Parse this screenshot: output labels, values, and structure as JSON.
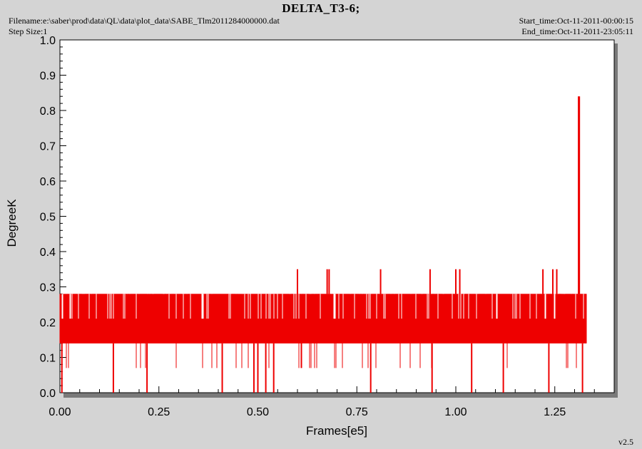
{
  "header": {
    "title": "DELTA_T3-6;",
    "filename": "Filename:e:\\saber\\prod\\data\\QL\\data\\plot_data\\SABE_Tlm2011284000000.dat",
    "step_size": "Step Size:1",
    "start_time": "Start_time:Oct-11-2011-00:00:15",
    "end_time": "End_time:Oct-11-2011-23:05:11"
  },
  "version": "v2.5",
  "colors": {
    "series": "#ee0000",
    "plot_bg": "#ffffff",
    "page_bg": "#d4d4d4",
    "shadow": "#7a7a7a"
  },
  "chart_data": {
    "type": "line",
    "title": "DELTA_T3-6;",
    "xlabel": "Frames[e5]",
    "ylabel": "DegreeK",
    "xlim": [
      0,
      1.4
    ],
    "ylim": [
      0,
      1.0
    ],
    "x_ticks": [
      "0.00",
      "0.25",
      "0.50",
      "0.75",
      "1.00",
      "1.25"
    ],
    "y_ticks": [
      "0.0",
      "0.1",
      "0.2",
      "0.3",
      "0.4",
      "0.5",
      "0.6",
      "0.7",
      "0.8",
      "0.9",
      "1.0"
    ],
    "x_tick_values": [
      0,
      0.25,
      0.5,
      0.75,
      1.0,
      1.25
    ],
    "y_tick_values": [
      0,
      0.1,
      0.2,
      0.3,
      0.4,
      0.5,
      0.6,
      0.7,
      0.8,
      0.9,
      1.0
    ],
    "grid": false,
    "series": [
      {
        "x_range": [
          0,
          1.33
        ],
        "band_min": 0.14,
        "band_max": 0.28,
        "typical_levels": [
          0.07,
          0.14,
          0.21,
          0.28
        ],
        "spikes": [
          {
            "x": 0.6,
            "y": 0.35
          },
          {
            "x": 0.675,
            "y": 0.35
          },
          {
            "x": 0.68,
            "y": 0.35
          },
          {
            "x": 0.81,
            "y": 0.35
          },
          {
            "x": 0.935,
            "y": 0.35
          },
          {
            "x": 1.0,
            "y": 0.35
          },
          {
            "x": 1.01,
            "y": 0.35
          },
          {
            "x": 1.22,
            "y": 0.35
          },
          {
            "x": 1.245,
            "y": 0.35
          },
          {
            "x": 1.255,
            "y": 0.35
          },
          {
            "x": 1.31,
            "y": 0.84
          },
          {
            "x": 1.312,
            "y": 0.84
          }
        ],
        "dips": [
          {
            "x": 0.005,
            "y": 0.0
          },
          {
            "x": 0.135,
            "y": 0.0
          },
          {
            "x": 0.22,
            "y": 0.0
          },
          {
            "x": 0.41,
            "y": 0.0
          },
          {
            "x": 0.49,
            "y": 0.0
          },
          {
            "x": 0.5,
            "y": 0.0
          },
          {
            "x": 0.52,
            "y": 0.0
          },
          {
            "x": 0.54,
            "y": 0.0
          },
          {
            "x": 0.785,
            "y": 0.0
          },
          {
            "x": 0.94,
            "y": 0.0
          },
          {
            "x": 1.04,
            "y": 0.0
          },
          {
            "x": 1.12,
            "y": 0.0
          },
          {
            "x": 1.235,
            "y": 0.0
          },
          {
            "x": 1.32,
            "y": 0.0
          }
        ]
      }
    ]
  }
}
